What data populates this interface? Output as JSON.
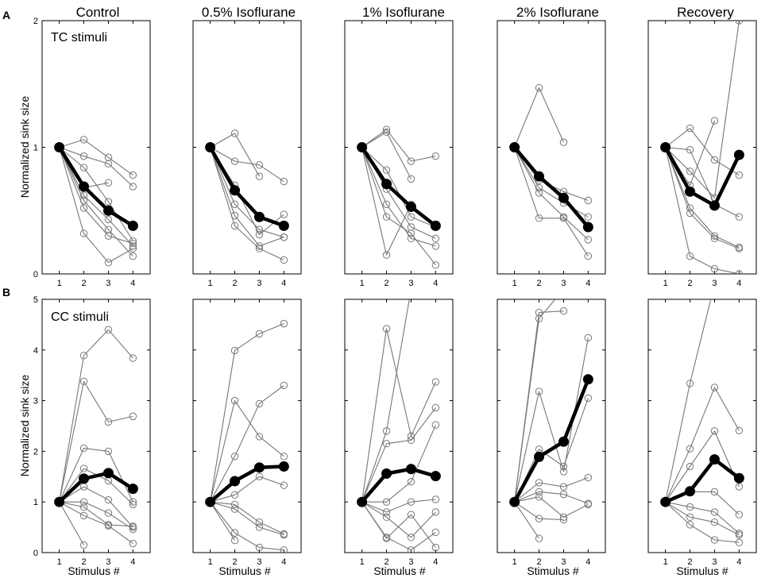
{
  "figure": {
    "row_labels": [
      "A",
      "B"
    ],
    "column_titles": [
      "Control",
      "0.5% Isoflurane",
      "1% Isoflurane",
      "2% Isoflurane",
      "Recovery"
    ],
    "stimulus_labels": [
      "TC stimuli",
      "CC stimuli"
    ],
    "ylabel": "Normalized sink size",
    "xlabel": "Stimulus  #",
    "colors": {
      "individual": "#777777",
      "mean": "#000000",
      "axes": "#000000"
    }
  },
  "chart_data": [
    {
      "type": "line",
      "row": "A",
      "title": "Control",
      "annotation": "TC stimuli",
      "xlabel": "Stimulus  #",
      "ylabel": "Normalized sink size",
      "x": [
        1,
        2,
        3,
        4
      ],
      "xlim": [
        0.3,
        4.7
      ],
      "ylim": [
        0,
        2
      ],
      "yticks": [
        0,
        1,
        2
      ],
      "series": [
        {
          "name": "mean",
          "values": [
            1,
            0.69,
            0.5,
            0.38
          ]
        },
        {
          "name": "s1",
          "values": [
            1,
            1.06,
            0.92,
            0.78
          ]
        },
        {
          "name": "s2",
          "values": [
            1,
            0.93,
            0.87,
            0.69
          ]
        },
        {
          "name": "s3",
          "values": [
            1,
            0.84,
            0.57,
            0.26
          ]
        },
        {
          "name": "s4",
          "values": [
            1,
            0.68,
            0.72,
            null
          ]
        },
        {
          "name": "s5",
          "values": [
            1,
            0.62,
            0.43,
            0.22
          ]
        },
        {
          "name": "s6",
          "values": [
            1,
            0.58,
            0.35,
            0.14
          ]
        },
        {
          "name": "s7",
          "values": [
            1,
            0.52,
            0.3,
            0.24
          ]
        },
        {
          "name": "s8",
          "values": [
            1,
            0.32,
            0.09,
            0.2
          ]
        }
      ]
    },
    {
      "type": "line",
      "row": "A",
      "title": "0.5% Isoflurane",
      "annotation": "",
      "xlabel": "",
      "ylabel": "",
      "x": [
        1,
        2,
        3,
        4
      ],
      "xlim": [
        0.3,
        4.7
      ],
      "ylim": [
        0,
        2
      ],
      "yticks": [],
      "series": [
        {
          "name": "mean",
          "values": [
            1,
            0.66,
            0.45,
            0.38
          ]
        },
        {
          "name": "s1",
          "values": [
            1,
            1.11,
            0.77,
            null
          ]
        },
        {
          "name": "s2",
          "values": [
            1,
            0.89,
            0.86,
            0.73
          ]
        },
        {
          "name": "s3",
          "values": [
            1,
            0.7,
            0.31,
            0.47
          ]
        },
        {
          "name": "s4",
          "values": [
            1,
            0.55,
            0.35,
            0.29
          ]
        },
        {
          "name": "s5",
          "values": [
            1,
            0.46,
            0.22,
            0.29
          ]
        },
        {
          "name": "s6",
          "values": [
            1,
            0.38,
            0.2,
            0.11
          ]
        }
      ]
    },
    {
      "type": "line",
      "row": "A",
      "title": "1% Isoflurane",
      "annotation": "",
      "xlabel": "",
      "ylabel": "",
      "x": [
        1,
        2,
        3,
        4
      ],
      "xlim": [
        0.3,
        4.7
      ],
      "ylim": [
        0,
        2
      ],
      "yticks": [],
      "series": [
        {
          "name": "mean",
          "values": [
            1,
            0.71,
            0.53,
            0.38
          ]
        },
        {
          "name": "s1",
          "values": [
            1,
            1.14,
            0.89,
            0.93
          ]
        },
        {
          "name": "s2",
          "values": [
            1,
            1.12,
            0.75,
            null
          ]
        },
        {
          "name": "s3",
          "values": [
            1,
            0.82,
            0.45,
            0.37
          ]
        },
        {
          "name": "s4",
          "values": [
            1,
            0.67,
            0.37,
            0.28
          ]
        },
        {
          "name": "s5",
          "values": [
            1,
            0.55,
            0.28,
            0.22
          ]
        },
        {
          "name": "s6",
          "values": [
            1,
            0.45,
            0.32,
            0.07
          ]
        },
        {
          "name": "s7",
          "values": [
            1,
            0.15,
            0.55,
            null
          ]
        }
      ]
    },
    {
      "type": "line",
      "row": "A",
      "title": "2% Isoflurane",
      "annotation": "",
      "xlabel": "",
      "ylabel": "",
      "x": [
        1,
        2,
        3,
        4
      ],
      "xlim": [
        0.3,
        4.7
      ],
      "ylim": [
        0,
        2
      ],
      "yticks": [],
      "series": [
        {
          "name": "mean",
          "values": [
            1,
            0.77,
            0.6,
            0.37
          ]
        },
        {
          "name": "s1",
          "values": [
            1,
            1.47,
            1.04,
            null
          ]
        },
        {
          "name": "s2",
          "values": [
            1,
            0.74,
            0.65,
            0.58
          ]
        },
        {
          "name": "s3",
          "values": [
            1,
            0.68,
            0.56,
            0.45
          ]
        },
        {
          "name": "s4",
          "values": [
            1,
            0.64,
            0.45,
            0.27
          ]
        },
        {
          "name": "s5",
          "values": [
            1,
            0.44,
            0.44,
            0.14
          ]
        }
      ]
    },
    {
      "type": "line",
      "row": "A",
      "title": "Recovery",
      "annotation": "",
      "xlabel": "",
      "ylabel": "",
      "x": [
        1,
        2,
        3,
        4
      ],
      "xlim": [
        0.3,
        4.7
      ],
      "ylim": [
        0,
        2
      ],
      "yticks": [],
      "series": [
        {
          "name": "mean",
          "values": [
            1,
            0.65,
            0.54,
            0.94
          ]
        },
        {
          "name": "s1",
          "values": [
            1,
            1.15,
            0.9,
            0.78
          ]
        },
        {
          "name": "s2",
          "values": [
            1,
            0.98,
            0.55,
            0.45
          ]
        },
        {
          "name": "s3",
          "values": [
            1,
            0.81,
            0.6,
            2.0
          ]
        },
        {
          "name": "s4",
          "values": [
            1,
            0.7,
            1.21,
            null
          ]
        },
        {
          "name": "s5",
          "values": [
            1,
            0.52,
            0.3,
            0.21
          ]
        },
        {
          "name": "s6",
          "values": [
            1,
            0.48,
            0.28,
            0.2
          ]
        },
        {
          "name": "s7",
          "values": [
            1,
            0.14,
            0.04,
            0.0
          ]
        }
      ]
    },
    {
      "type": "line",
      "row": "B",
      "title": "",
      "annotation": "CC stimuli",
      "xlabel": "Stimulus  #",
      "ylabel": "Normalized sink size",
      "x": [
        1,
        2,
        3,
        4
      ],
      "xlim": [
        0.3,
        4.7
      ],
      "ylim": [
        0,
        5
      ],
      "yticks": [
        0,
        1,
        2,
        3,
        4,
        5
      ],
      "series": [
        {
          "name": "mean",
          "values": [
            1,
            1.46,
            1.57,
            1.26
          ]
        },
        {
          "name": "s1",
          "values": [
            1,
            3.89,
            4.4,
            3.84
          ]
        },
        {
          "name": "s2",
          "values": [
            1,
            3.38,
            2.58,
            2.69
          ]
        },
        {
          "name": "s3",
          "values": [
            1,
            2.06,
            2.0,
            1.0
          ]
        },
        {
          "name": "s4",
          "values": [
            1,
            1.66,
            1.42,
            0.95
          ]
        },
        {
          "name": "s5",
          "values": [
            1,
            1.3,
            1.04,
            0.5
          ]
        },
        {
          "name": "s6",
          "values": [
            1,
            1.0,
            0.78,
            0.46
          ]
        },
        {
          "name": "s7",
          "values": [
            1,
            0.9,
            0.55,
            0.52
          ]
        },
        {
          "name": "s8",
          "values": [
            1,
            0.73,
            0.53,
            0.18
          ]
        },
        {
          "name": "s9",
          "values": [
            1,
            0.15,
            null,
            null
          ]
        }
      ]
    },
    {
      "type": "line",
      "row": "B",
      "title": "",
      "annotation": "",
      "xlabel": "Stimulus  #",
      "ylabel": "",
      "x": [
        1,
        2,
        3,
        4
      ],
      "xlim": [
        0.3,
        4.7
      ],
      "ylim": [
        0,
        5
      ],
      "yticks": [],
      "series": [
        {
          "name": "mean",
          "values": [
            1,
            1.41,
            1.68,
            1.7
          ]
        },
        {
          "name": "s1",
          "values": [
            1,
            3.99,
            4.32,
            4.52
          ]
        },
        {
          "name": "s2",
          "values": [
            1,
            3.0,
            2.29,
            1.9
          ]
        },
        {
          "name": "s3",
          "values": [
            1,
            1.9,
            2.94,
            3.3
          ]
        },
        {
          "name": "s4",
          "values": [
            1,
            1.14,
            1.5,
            1.33
          ]
        },
        {
          "name": "s5",
          "values": [
            1,
            0.95,
            0.6,
            0.37
          ]
        },
        {
          "name": "s6",
          "values": [
            1,
            0.86,
            0.5,
            0.35
          ]
        },
        {
          "name": "s7",
          "values": [
            1,
            0.39,
            0.1,
            0.05
          ]
        },
        {
          "name": "s8",
          "values": [
            1,
            0.24,
            null,
            null
          ]
        }
      ]
    },
    {
      "type": "line",
      "row": "B",
      "title": "",
      "annotation": "",
      "xlabel": "Stimulus  #",
      "ylabel": "",
      "x": [
        1,
        2,
        3,
        4
      ],
      "xlim": [
        0.3,
        4.7
      ],
      "ylim": [
        0,
        5
      ],
      "yticks": [],
      "series": [
        {
          "name": "mean",
          "values": [
            1,
            1.56,
            1.65,
            1.51
          ]
        },
        {
          "name": "s1",
          "values": [
            1,
            4.42,
            2.3,
            3.37
          ]
        },
        {
          "name": "s2",
          "values": [
            1,
            2.4,
            5.2,
            null
          ]
        },
        {
          "name": "s3",
          "values": [
            1,
            2.15,
            2.22,
            2.86
          ]
        },
        {
          "name": "s4",
          "values": [
            1,
            1.0,
            1.4,
            2.52
          ]
        },
        {
          "name": "s5",
          "values": [
            1,
            0.8,
            1.0,
            1.05
          ]
        },
        {
          "name": "s6",
          "values": [
            1,
            0.7,
            0.3,
            0.8
          ]
        },
        {
          "name": "s7",
          "values": [
            1,
            0.28,
            0.75,
            0.1
          ]
        },
        {
          "name": "s8",
          "values": [
            1,
            0.3,
            0.05,
            0.4
          ]
        }
      ]
    },
    {
      "type": "line",
      "row": "B",
      "title": "",
      "annotation": "",
      "xlabel": "Stimulus  #",
      "ylabel": "",
      "x": [
        1,
        2,
        3,
        4
      ],
      "xlim": [
        0.3,
        4.7
      ],
      "ylim": [
        0,
        5
      ],
      "yticks": [],
      "series": [
        {
          "name": "mean",
          "values": [
            1,
            1.89,
            2.19,
            3.42
          ]
        },
        {
          "name": "s1",
          "values": [
            1,
            4.74,
            4.77,
            null
          ]
        },
        {
          "name": "s2",
          "values": [
            1,
            4.62,
            5.2,
            null
          ]
        },
        {
          "name": "s3",
          "values": [
            1,
            3.18,
            1.6,
            4.24
          ]
        },
        {
          "name": "s4",
          "values": [
            1,
            2.04,
            1.7,
            3.05
          ]
        },
        {
          "name": "s5",
          "values": [
            1,
            1.38,
            1.3,
            1.48
          ]
        },
        {
          "name": "s6",
          "values": [
            1,
            1.2,
            1.15,
            0.97
          ]
        },
        {
          "name": "s7",
          "values": [
            1,
            1.1,
            0.7,
            0.95
          ]
        },
        {
          "name": "s8",
          "values": [
            1,
            0.67,
            0.65,
            null
          ]
        },
        {
          "name": "s9",
          "values": [
            1,
            0.28,
            null,
            null
          ]
        }
      ]
    },
    {
      "type": "line",
      "row": "B",
      "title": "",
      "annotation": "",
      "xlabel": "Stimulus  #",
      "ylabel": "",
      "x": [
        1,
        2,
        3,
        4
      ],
      "xlim": [
        0.3,
        4.7
      ],
      "ylim": [
        0,
        5
      ],
      "yticks": [],
      "series": [
        {
          "name": "mean",
          "values": [
            1,
            1.21,
            1.84,
            1.47
          ]
        },
        {
          "name": "s1",
          "values": [
            1,
            3.34,
            5.3,
            null
          ]
        },
        {
          "name": "s2",
          "values": [
            1,
            2.05,
            3.26,
            2.41
          ]
        },
        {
          "name": "s3",
          "values": [
            1,
            1.7,
            2.4,
            1.3
          ]
        },
        {
          "name": "s4",
          "values": [
            1,
            1.2,
            1.2,
            0.75
          ]
        },
        {
          "name": "s5",
          "values": [
            1,
            0.9,
            0.8,
            0.38
          ]
        },
        {
          "name": "s6",
          "values": [
            1,
            0.7,
            0.6,
            0.35
          ]
        },
        {
          "name": "s7",
          "values": [
            1,
            0.55,
            0.25,
            0.2
          ]
        }
      ]
    }
  ]
}
